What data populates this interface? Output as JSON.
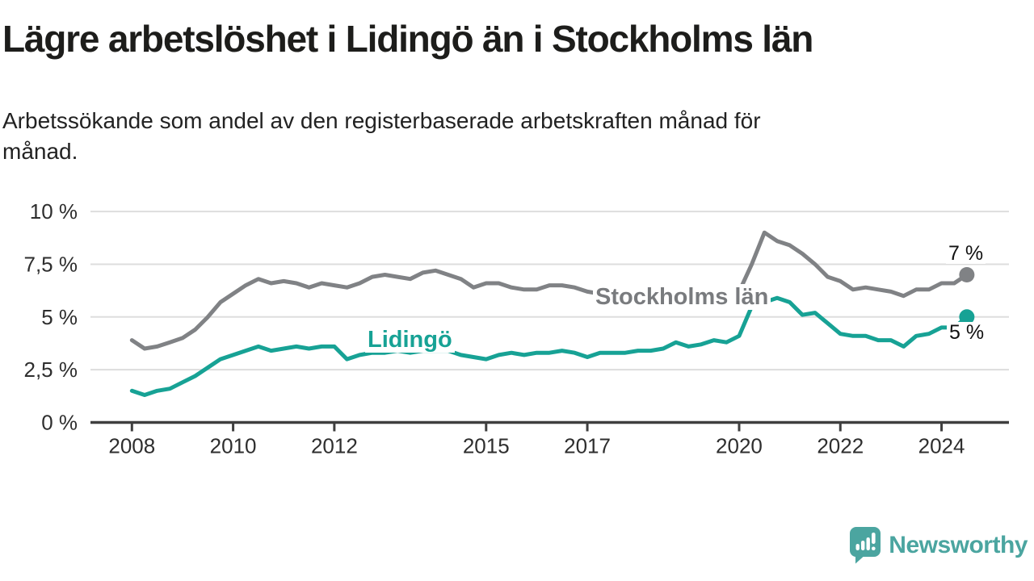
{
  "header": {
    "title": "Lägre arbetslöshet i Lidingö än i Stockholms län",
    "subtitle": "Arbetssökande som andel av den registerbaserade arbetskraften månad för månad."
  },
  "chart_data": {
    "type": "line",
    "title": "Lägre arbetslöshet i Lidingö än i Stockholms län",
    "subtitle": "Arbetssökande som andel av den registerbaserade arbetskraften månad för månad.",
    "x_unit": "decimal_year",
    "x_start": 2008,
    "x_step": 0.25,
    "xlim": [
      2007.2,
      2025.3
    ],
    "ylim": [
      0,
      10
    ],
    "grid": true,
    "x_ticks": [
      2008,
      2010,
      2012,
      2015,
      2017,
      2020,
      2022,
      2024
    ],
    "y_ticks": [
      {
        "value": 0,
        "label": "0 %"
      },
      {
        "value": 2.5,
        "label": "2,5 %"
      },
      {
        "value": 5,
        "label": "5 %"
      },
      {
        "value": 7.5,
        "label": "7,5 %"
      },
      {
        "value": 10,
        "label": "10 %"
      }
    ],
    "series": [
      {
        "name": "Stockholms län",
        "color": "#808285",
        "end_label": "7 %",
        "end_value": 7,
        "values": [
          3.9,
          3.5,
          3.6,
          3.8,
          4.0,
          4.4,
          5.0,
          5.7,
          6.1,
          6.5,
          6.8,
          6.6,
          6.7,
          6.6,
          6.4,
          6.6,
          6.5,
          6.4,
          6.6,
          6.9,
          7.0,
          6.9,
          6.8,
          7.1,
          7.2,
          7.0,
          6.8,
          6.4,
          6.6,
          6.6,
          6.4,
          6.3,
          6.3,
          6.5,
          6.5,
          6.4,
          6.2,
          6.1,
          6.0,
          6.1,
          6.0,
          6.0,
          5.9,
          6.0,
          6.0,
          6.0,
          6.1,
          6.1,
          6.2,
          7.5,
          9.0,
          8.6,
          8.4,
          8.0,
          7.5,
          6.9,
          6.7,
          6.3,
          6.4,
          6.3,
          6.2,
          6.0,
          6.3,
          6.3,
          6.6,
          6.6,
          7.0
        ]
      },
      {
        "name": "Lidingö",
        "color": "#17a295",
        "end_label": "5 %",
        "end_value": 5,
        "values": [
          1.5,
          1.3,
          1.5,
          1.6,
          1.9,
          2.2,
          2.6,
          3.0,
          3.2,
          3.4,
          3.6,
          3.4,
          3.5,
          3.6,
          3.5,
          3.6,
          3.6,
          3.0,
          3.2,
          3.3,
          3.3,
          3.4,
          3.3,
          3.4,
          3.4,
          3.4,
          3.2,
          3.1,
          3.0,
          3.2,
          3.3,
          3.2,
          3.3,
          3.3,
          3.4,
          3.3,
          3.1,
          3.3,
          3.3,
          3.3,
          3.4,
          3.4,
          3.5,
          3.8,
          3.6,
          3.7,
          3.9,
          3.8,
          4.1,
          5.5,
          5.7,
          5.9,
          5.7,
          5.1,
          5.2,
          4.7,
          4.2,
          4.1,
          4.1,
          3.9,
          3.9,
          3.6,
          4.1,
          4.2,
          4.5,
          4.5,
          5.0
        ]
      }
    ]
  },
  "footer": {
    "brand": "Newsworthy"
  }
}
